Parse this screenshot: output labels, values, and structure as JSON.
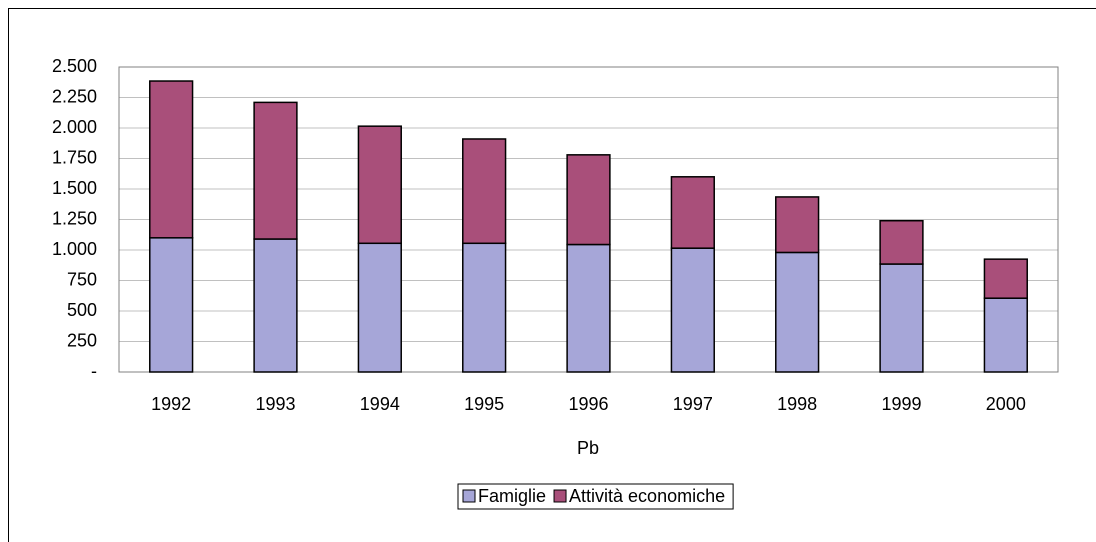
{
  "chart_data": {
    "type": "stacked_bar",
    "x_label": "Pb",
    "categories": [
      "1992",
      "1993",
      "1994",
      "1995",
      "1996",
      "1997",
      "1998",
      "1999",
      "2000"
    ],
    "series": [
      {
        "name": "Famiglie",
        "color": "#a6a6d8",
        "values": [
          1100,
          1090,
          1055,
          1055,
          1045,
          1015,
          980,
          885,
          605
        ]
      },
      {
        "name": "Attività economiche",
        "color": "#a94f7a",
        "values": [
          1285,
          1120,
          960,
          855,
          735,
          585,
          455,
          355,
          320
        ]
      }
    ],
    "ylim": [
      0,
      2500
    ],
    "yticks": [
      {
        "value": 0,
        "label": "-"
      },
      250,
      500,
      750,
      {
        "value": 1000,
        "label": "1.000"
      },
      {
        "value": 1250,
        "label": "1.250"
      },
      {
        "value": 1500,
        "label": "1.500"
      },
      {
        "value": 1750,
        "label": "1.750"
      },
      {
        "value": 2000,
        "label": "2.000"
      },
      {
        "value": 2250,
        "label": "2.250"
      },
      {
        "value": 2500,
        "label": "2.500"
      }
    ],
    "grid": true,
    "legend": "bottom"
  }
}
